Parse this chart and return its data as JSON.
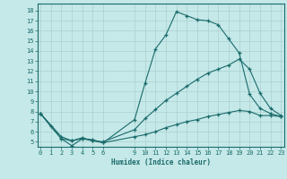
{
  "xlabel": "Humidex (Indice chaleur)",
  "bg_color": "#c5e8e8",
  "line_color": "#1a6b6b",
  "grid_color": "#b0d8d8",
  "line1_x": [
    0,
    1,
    2,
    3,
    4,
    5,
    6,
    9,
    10,
    11,
    12,
    13,
    14,
    15,
    16,
    17,
    18,
    19,
    20,
    21,
    22,
    23
  ],
  "line1_y": [
    7.8,
    6.5,
    5.3,
    4.6,
    5.3,
    5.2,
    4.9,
    7.2,
    10.8,
    14.2,
    15.6,
    17.9,
    17.5,
    17.1,
    17.0,
    16.6,
    15.2,
    13.8,
    9.7,
    8.3,
    7.8,
    7.5
  ],
  "line2_x": [
    0,
    2,
    3,
    4,
    5,
    6,
    9,
    10,
    11,
    12,
    13,
    14,
    15,
    16,
    17,
    18,
    19,
    20,
    21,
    22,
    23
  ],
  "line2_y": [
    7.8,
    5.3,
    5.1,
    5.3,
    5.1,
    5.0,
    6.2,
    7.3,
    8.2,
    9.1,
    9.8,
    10.5,
    11.2,
    11.8,
    12.2,
    12.6,
    13.2,
    12.2,
    9.8,
    8.3,
    7.6
  ],
  "line3_x": [
    0,
    2,
    3,
    4,
    5,
    6,
    9,
    10,
    11,
    12,
    13,
    14,
    15,
    16,
    17,
    18,
    19,
    20,
    21,
    22,
    23
  ],
  "line3_y": [
    7.8,
    5.5,
    5.1,
    5.4,
    5.1,
    4.9,
    5.5,
    5.7,
    6.0,
    6.4,
    6.7,
    7.0,
    7.2,
    7.5,
    7.7,
    7.9,
    8.1,
    8.0,
    7.6,
    7.6,
    7.5
  ],
  "xlim": [
    -0.3,
    23.3
  ],
  "ylim": [
    4.5,
    18.7
  ],
  "yticks": [
    5,
    6,
    7,
    8,
    9,
    10,
    11,
    12,
    13,
    14,
    15,
    16,
    17,
    18
  ],
  "xticks": [
    0,
    1,
    2,
    3,
    4,
    5,
    6,
    9,
    10,
    11,
    12,
    13,
    14,
    15,
    16,
    17,
    18,
    19,
    20,
    21,
    22,
    23
  ]
}
